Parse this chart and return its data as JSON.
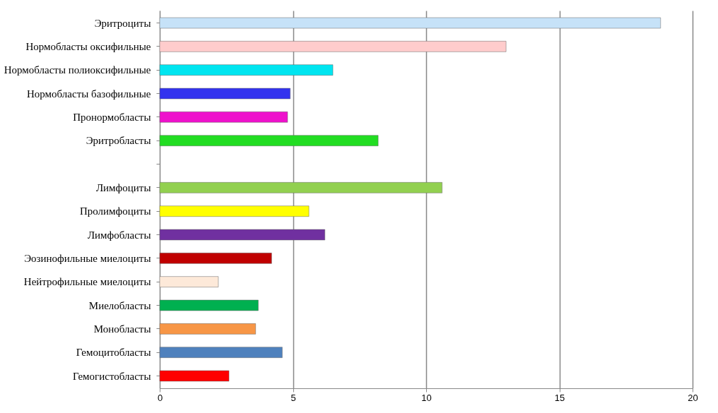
{
  "chart_data": {
    "type": "bar",
    "orientation": "horizontal",
    "categories": [
      "Эритроциты",
      "Нормобласты оксифильные",
      "Нормобласты полиоксифильные",
      "Нормобласты базофильные",
      "Пронормобласты",
      "Эритробласты",
      null,
      "Лимфоциты",
      "Пролимфоциты",
      "Лимфобласты",
      "Эозинофильные миелоциты",
      "Нейтрофильные миелоциты",
      "Миелобласты",
      "Монобласты",
      "Гемоцитобласты",
      "Гемогистобласты"
    ],
    "values": [
      18.8,
      13.0,
      6.5,
      4.9,
      4.8,
      8.2,
      null,
      10.6,
      5.6,
      6.2,
      4.2,
      2.2,
      3.7,
      3.6,
      4.6,
      2.6
    ],
    "colors": [
      "#c6e2f8",
      "#ffcccc",
      "#00e5f0",
      "#3333ee",
      "#ee11cc",
      "#22dd22",
      null,
      "#92d050",
      "#ffff00",
      "#7030a0",
      "#c00000",
      "#fde9d9",
      "#00b050",
      "#f79646",
      "#4f81bd",
      "#ff0000"
    ],
    "xlim": [
      0,
      20
    ],
    "xticks": [
      0,
      5,
      10,
      15,
      20
    ],
    "grid": "x"
  }
}
